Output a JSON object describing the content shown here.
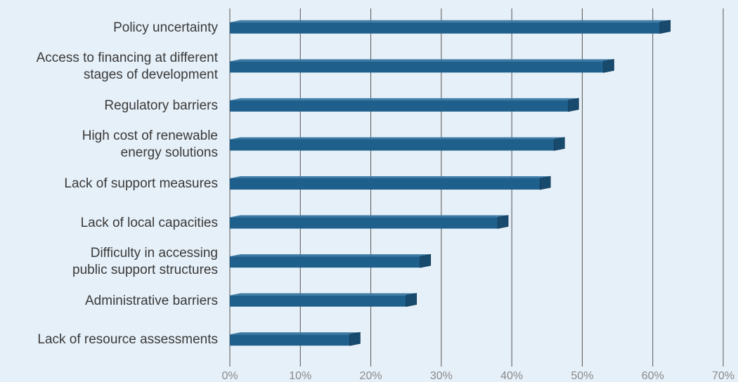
{
  "chart_data": {
    "type": "barh",
    "categories": [
      "Policy uncertainty",
      "Access to financing at different\nstages of development",
      "Regulatory barriers",
      "High cost of renewable\nenergy solutions",
      "Lack of support measures",
      "Lack of local capacities",
      "Difficulty in accessing\npublic support structures",
      "Administrative barriers",
      "Lack of resource assessments"
    ],
    "values": [
      61,
      53,
      48,
      46,
      44,
      38,
      27,
      25,
      17
    ],
    "color": "#1f5f8b",
    "xlim": [
      0,
      70
    ],
    "xticks": [
      {
        "value": 0,
        "label": "0%"
      },
      {
        "value": 10,
        "label": "10%"
      },
      {
        "value": 20,
        "label": "20%"
      },
      {
        "value": 30,
        "label": "30%"
      },
      {
        "value": 40,
        "label": "40%"
      },
      {
        "value": 50,
        "label": "50%"
      },
      {
        "value": 60,
        "label": "60%"
      },
      {
        "value": 70,
        "label": "70%"
      }
    ],
    "grid": true
  }
}
